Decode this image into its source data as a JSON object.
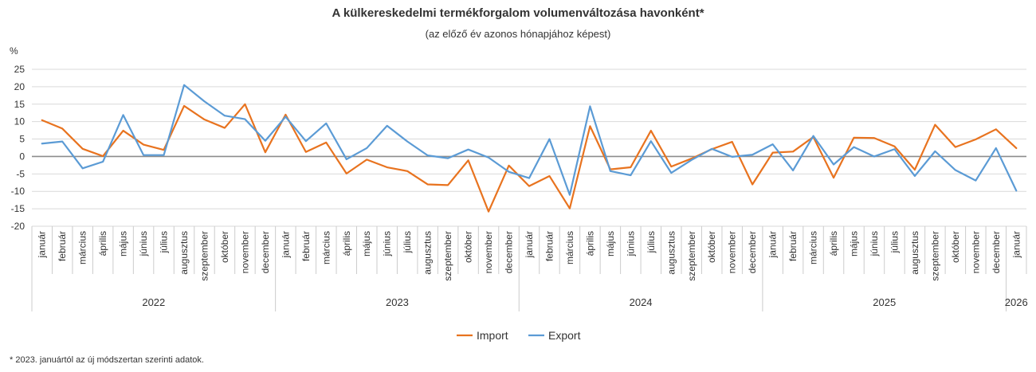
{
  "chart_data": {
    "type": "line",
    "title": "A külkereskedelmi termékforgalom volumenváltozása havonként*",
    "subtitle": "(az előző év azonos hónapjához képest)",
    "ylabel": "%",
    "ylim": [
      -20,
      25
    ],
    "yticks": [
      25,
      20,
      15,
      10,
      5,
      0,
      -5,
      -10,
      -15,
      -20
    ],
    "grid": true,
    "legend_position": "bottom-center",
    "footnote": "* 2023. januártól az új módszertan szerinti adatok.",
    "categories": [
      "január",
      "február",
      "március",
      "április",
      "május",
      "június",
      "július",
      "augusztus",
      "szeptember",
      "október",
      "november",
      "december",
      "január",
      "február",
      "március",
      "április",
      "május",
      "június",
      "július",
      "augusztus",
      "szeptember",
      "október",
      "november",
      "december",
      "január",
      "február",
      "március",
      "április",
      "május",
      "június",
      "július",
      "augusztus",
      "szeptember",
      "október",
      "november",
      "december",
      "január",
      "február",
      "március",
      "április",
      "május",
      "június",
      "július",
      "augusztus",
      "szeptember",
      "október",
      "november",
      "december",
      "január"
    ],
    "years": [
      {
        "label": "2022",
        "start": 0,
        "count": 12
      },
      {
        "label": "2023",
        "start": 12,
        "count": 12
      },
      {
        "label": "2024",
        "start": 24,
        "count": 12
      },
      {
        "label": "2025",
        "start": 36,
        "count": 12
      },
      {
        "label": "2026",
        "start": 48,
        "count": 1
      }
    ],
    "series": [
      {
        "name": "Import",
        "color": "#e8731f",
        "values": [
          10.4,
          8.0,
          2.2,
          0.1,
          7.4,
          3.4,
          1.9,
          14.5,
          10.6,
          8.2,
          15.0,
          1.2,
          12.0,
          1.3,
          4.0,
          -4.9,
          -0.9,
          -3.1,
          -4.2,
          -8.0,
          -8.2,
          -1.1,
          -15.8,
          -2.6,
          -8.5,
          -5.6,
          -14.9,
          8.7,
          -3.7,
          -3.1,
          7.4,
          -2.9,
          -0.6,
          2.1,
          4.2,
          -8.0,
          1.1,
          1.4,
          5.6,
          -6.1,
          5.4,
          5.3,
          2.9,
          -3.8,
          9.1,
          2.7,
          4.9,
          7.8,
          2.4
        ]
      },
      {
        "name": "Export",
        "color": "#5b9bd5",
        "values": [
          3.7,
          4.3,
          -3.4,
          -1.5,
          11.9,
          0.4,
          0.4,
          20.5,
          15.8,
          11.7,
          10.7,
          4.5,
          11.4,
          4.4,
          9.5,
          -0.8,
          2.4,
          8.8,
          4.3,
          0.3,
          -0.5,
          2.0,
          -0.3,
          -4.4,
          -6.2,
          5.0,
          -11.0,
          14.4,
          -4.2,
          -5.4,
          4.4,
          -4.7,
          -1.0,
          2.2,
          -0.1,
          0.5,
          3.5,
          -4.0,
          5.9,
          -2.3,
          2.7,
          0.0,
          2.1,
          -5.6,
          1.5,
          -3.9,
          -6.9,
          2.4,
          -9.8
        ]
      }
    ]
  }
}
